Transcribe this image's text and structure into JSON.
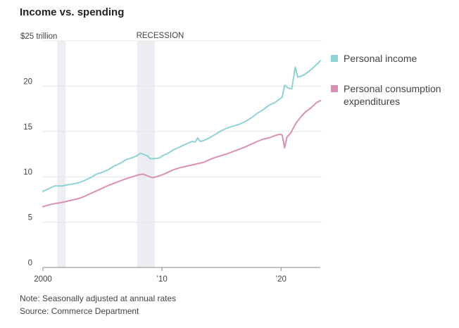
{
  "chart_data": {
    "type": "line",
    "title": "Income vs. spending",
    "y_unit_label": "$25 trillion",
    "ylim": [
      0,
      25
    ],
    "y_ticks": [
      0,
      5,
      10,
      15,
      20,
      25
    ],
    "y_tick_labels": [
      "0",
      "5",
      "10",
      "15",
      "20",
      "$25 trillion"
    ],
    "xlim": [
      2000,
      2023.3
    ],
    "x_ticks": [
      2000,
      2010,
      2020
    ],
    "x_tick_labels": [
      "2000",
      "’10",
      "’20"
    ],
    "grid": "horizontal",
    "legend_position": "right",
    "recession_label": "RECESSION",
    "recessions": [
      [
        2001.2,
        2001.9
      ],
      [
        2007.9,
        2009.4
      ]
    ],
    "series": [
      {
        "name": "Personal income",
        "color": "#8fd3d6",
        "x": [
          2000,
          2000.5,
          2001,
          2001.2,
          2001.6,
          2002,
          2002.5,
          2003,
          2003.5,
          2004,
          2004.5,
          2005,
          2005.5,
          2006,
          2006.5,
          2007,
          2007.5,
          2008,
          2008.2,
          2008.5,
          2008.8,
          2009,
          2009.4,
          2009.8,
          2010,
          2010.5,
          2011,
          2011.5,
          2012,
          2012.5,
          2012.8,
          2013,
          2013.2,
          2013.5,
          2014,
          2014.5,
          2015,
          2015.5,
          2016,
          2016.5,
          2017,
          2017.5,
          2018,
          2018.5,
          2019,
          2019.5,
          2019.9,
          2020.1,
          2020.3,
          2020.6,
          2020.9,
          2021.2,
          2021.4,
          2021.7,
          2022,
          2022.5,
          2023,
          2023.3
        ],
        "values": [
          8.4,
          8.7,
          9.0,
          9.0,
          9.0,
          9.1,
          9.2,
          9.35,
          9.6,
          9.9,
          10.3,
          10.5,
          10.8,
          11.2,
          11.5,
          11.9,
          12.1,
          12.4,
          12.6,
          12.45,
          12.3,
          12.0,
          12.0,
          12.1,
          12.3,
          12.6,
          13.0,
          13.3,
          13.6,
          13.9,
          13.85,
          14.3,
          13.9,
          14.0,
          14.3,
          14.7,
          15.1,
          15.4,
          15.6,
          15.8,
          16.1,
          16.5,
          17.0,
          17.4,
          17.9,
          18.2,
          18.6,
          18.8,
          20.1,
          19.8,
          19.7,
          22.1,
          21.0,
          21.1,
          21.3,
          21.8,
          22.4,
          22.8
        ]
      },
      {
        "name": "Personal consumption expenditures",
        "color": "#d990b4",
        "x": [
          2000,
          2000.5,
          2001,
          2001.5,
          2002,
          2002.5,
          2003,
          2003.5,
          2004,
          2004.5,
          2005,
          2005.5,
          2006,
          2006.5,
          2007,
          2007.5,
          2008,
          2008.4,
          2008.8,
          2009.2,
          2009.5,
          2010,
          2010.5,
          2011,
          2011.5,
          2012,
          2012.5,
          2013,
          2013.5,
          2014,
          2014.5,
          2015,
          2015.5,
          2016,
          2016.5,
          2017,
          2017.5,
          2018,
          2018.5,
          2019,
          2019.5,
          2019.9,
          2020.1,
          2020.3,
          2020.5,
          2020.8,
          2021,
          2021.3,
          2021.6,
          2022,
          2022.5,
          2023,
          2023.3
        ],
        "values": [
          6.7,
          6.9,
          7.05,
          7.15,
          7.3,
          7.45,
          7.6,
          7.85,
          8.15,
          8.45,
          8.75,
          9.05,
          9.3,
          9.55,
          9.8,
          10.0,
          10.2,
          10.3,
          10.1,
          9.9,
          10.0,
          10.2,
          10.5,
          10.8,
          11.0,
          11.15,
          11.3,
          11.45,
          11.6,
          11.9,
          12.15,
          12.35,
          12.55,
          12.8,
          13.05,
          13.3,
          13.6,
          13.9,
          14.15,
          14.3,
          14.55,
          14.7,
          14.6,
          13.2,
          14.4,
          14.8,
          15.3,
          16.0,
          16.5,
          17.1,
          17.6,
          18.2,
          18.4
        ]
      }
    ]
  },
  "footer": {
    "note": "Note: Seasonally adjusted at annual rates",
    "source": "Source: Commerce Department"
  }
}
